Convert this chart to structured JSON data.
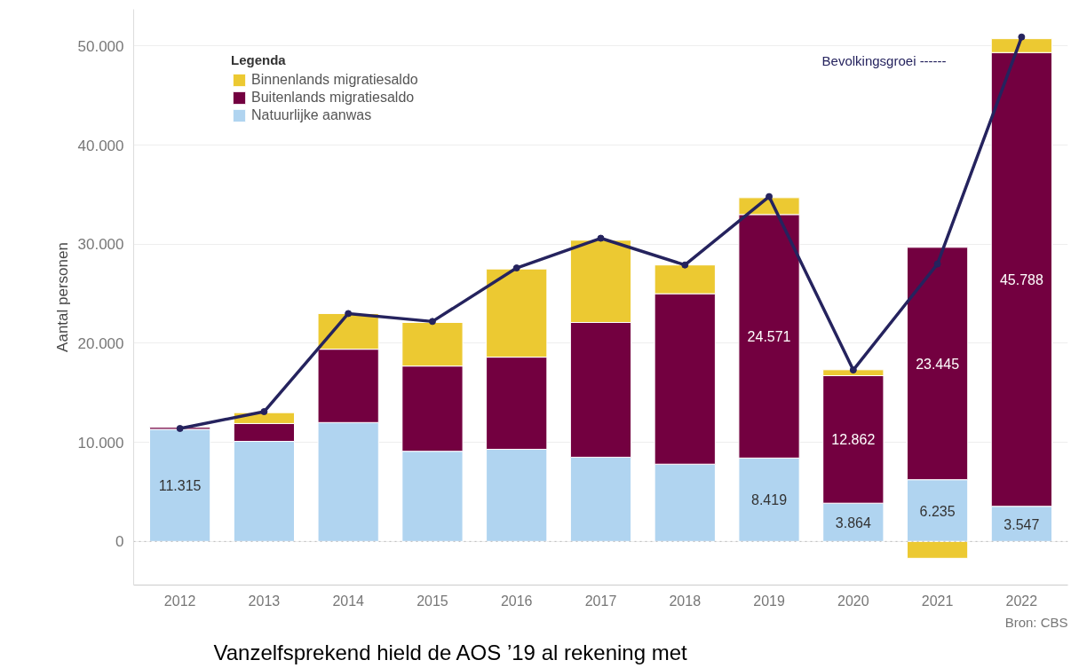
{
  "chart_data": {
    "type": "bar",
    "stacked": true,
    "ylabel": "Aantal personen",
    "legend_title": "Legenda",
    "legend": "top left",
    "grid": "y",
    "categories": [
      "2012",
      "2013",
      "2014",
      "2015",
      "2016",
      "2017",
      "2018",
      "2019",
      "2020",
      "2021",
      "2022"
    ],
    "ylim": [
      -4400,
      53700
    ],
    "yticks": [
      {
        "value": 0,
        "label": "0"
      },
      {
        "value": 10000,
        "label": "10.000"
      },
      {
        "value": 20000,
        "label": "20.000"
      },
      {
        "value": 30000,
        "label": "30.000"
      },
      {
        "value": 40000,
        "label": "40.000"
      },
      {
        "value": 50000,
        "label": "50.000"
      }
    ],
    "series": [
      {
        "name": "Natuurlijke aanwas",
        "color": "#b0d4f0",
        "values": [
          11315,
          10100,
          12000,
          9100,
          9300,
          8500,
          7800,
          8419,
          3864,
          6235,
          3547
        ],
        "value_labels": [
          "11.315",
          null,
          null,
          null,
          null,
          null,
          null,
          "8.419",
          "3.864",
          "6.235",
          "3.547"
        ]
      },
      {
        "name": "Buitenlands migratiesaldo",
        "color": "#730040",
        "values": [
          200,
          1800,
          7400,
          8600,
          9300,
          13600,
          17200,
          24571,
          12862,
          23445,
          45788
        ],
        "value_labels": [
          null,
          null,
          null,
          null,
          null,
          null,
          null,
          "24.571",
          "12.862",
          "23.445",
          "45.788"
        ]
      },
      {
        "name": "Binnenlands migratiesaldo",
        "color": "#ecc932",
        "values": [
          null,
          1100,
          3600,
          4400,
          8900,
          8300,
          2900,
          1700,
          600,
          -1700,
          1400
        ]
      },
      {
        "name": "Bevolkingsgroei ------",
        "type": "line",
        "color": "#25235e",
        "marker": "circle",
        "values": [
          11400,
          13100,
          23000,
          22200,
          27600,
          30600,
          27900,
          34800,
          17300,
          28000,
          50900
        ]
      }
    ],
    "ref_lines": [
      {
        "axis": "y",
        "value": 0,
        "line_style": "dotted",
        "color": "#bbbbbb"
      }
    ],
    "annotations": [
      "Bron: CBS",
      "Vanzelfsprekend hield de AOS ’19 al rekening met"
    ]
  }
}
